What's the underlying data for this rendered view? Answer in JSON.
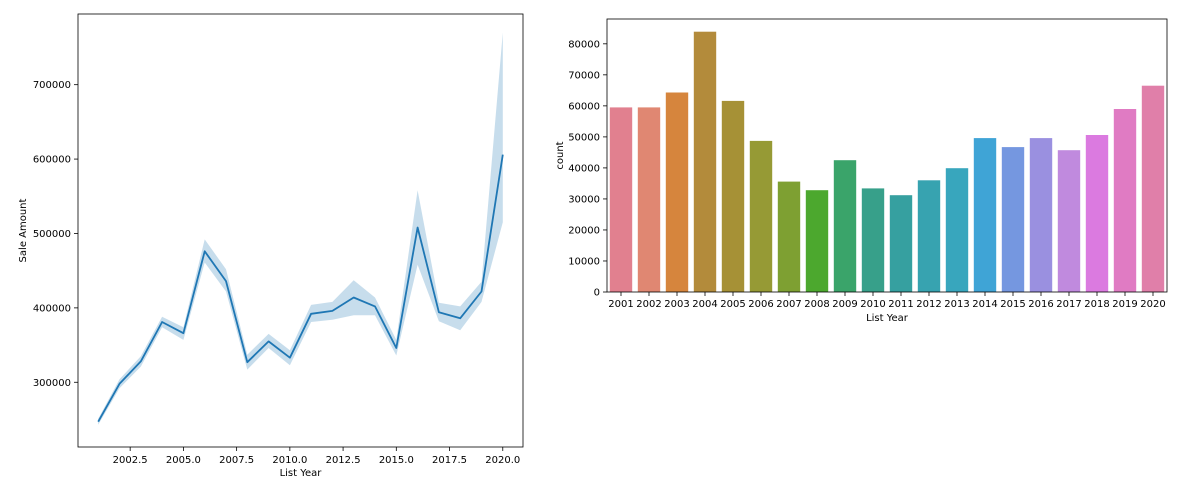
{
  "chart_data": [
    {
      "type": "line",
      "xlabel": "List Year",
      "ylabel": "Sale Amount",
      "xlim": [
        2000.05,
        2020.95
      ],
      "ylim": [
        213000,
        795000
      ],
      "xticks": [
        2002.5,
        2005.0,
        2007.5,
        2010.0,
        2012.5,
        2015.0,
        2017.5,
        2020.0
      ],
      "xtick_labels": [
        "2002.5",
        "2005.0",
        "2007.5",
        "2010.0",
        "2012.5",
        "2015.0",
        "2017.5",
        "2020.0"
      ],
      "yticks": [
        300000,
        400000,
        500000,
        600000,
        700000
      ],
      "ytick_labels": [
        "300000",
        "400000",
        "500000",
        "600000",
        "700000"
      ],
      "series": [
        {
          "x": [
            2001,
            2002,
            2003,
            2004,
            2005,
            2006,
            2007,
            2008,
            2009,
            2010,
            2011,
            2012,
            2013,
            2014,
            2015,
            2016,
            2017,
            2018,
            2019,
            2020
          ],
          "values": [
            247000,
            298000,
            328000,
            381000,
            366000,
            476000,
            436000,
            327000,
            355000,
            333000,
            392000,
            396000,
            414000,
            402000,
            346000,
            508000,
            394000,
            386000,
            422000,
            606000
          ],
          "ci_lower": [
            243000,
            292000,
            321000,
            374000,
            357000,
            461000,
            422000,
            317000,
            346000,
            323000,
            381000,
            384000,
            390000,
            390000,
            336000,
            458000,
            382000,
            370000,
            408000,
            515000
          ],
          "ci_upper": [
            251000,
            304000,
            335000,
            388000,
            374000,
            492000,
            452000,
            337000,
            365000,
            343000,
            404000,
            408000,
            437000,
            414000,
            357000,
            558000,
            407000,
            402000,
            435000,
            770000
          ],
          "color": "#1f77b4"
        }
      ],
      "grid": false
    },
    {
      "type": "bar",
      "xlabel": "List Year",
      "ylabel": "count",
      "ylim": [
        0,
        88000
      ],
      "yticks": [
        0,
        10000,
        20000,
        30000,
        40000,
        50000,
        60000,
        70000,
        80000
      ],
      "ytick_labels": [
        "0",
        "10000",
        "20000",
        "30000",
        "40000",
        "50000",
        "60000",
        "70000",
        "80000"
      ],
      "categories": [
        "2001",
        "2002",
        "2003",
        "2004",
        "2005",
        "2006",
        "2007",
        "2008",
        "2009",
        "2010",
        "2011",
        "2012",
        "2013",
        "2014",
        "2015",
        "2016",
        "2017",
        "2018",
        "2019",
        "2020"
      ],
      "values": [
        59500,
        59500,
        64300,
        83900,
        61600,
        48700,
        35600,
        32800,
        42500,
        33400,
        31200,
        36000,
        39900,
        49600,
        46700,
        49600,
        45700,
        50600,
        59000,
        66500
      ],
      "colors": [
        "#e1808f",
        "#e08772",
        "#d6853d",
        "#b38b3b",
        "#a69136",
        "#969a35",
        "#7ea032",
        "#4ca82e",
        "#3aa46a",
        "#37a08a",
        "#36a0a0",
        "#37a3b0",
        "#38a6bd",
        "#3fa4d6",
        "#7597e0",
        "#9a90e0",
        "#c08ade",
        "#db7ae0",
        "#e07bc3",
        "#e07fa9"
      ],
      "grid": false
    }
  ]
}
